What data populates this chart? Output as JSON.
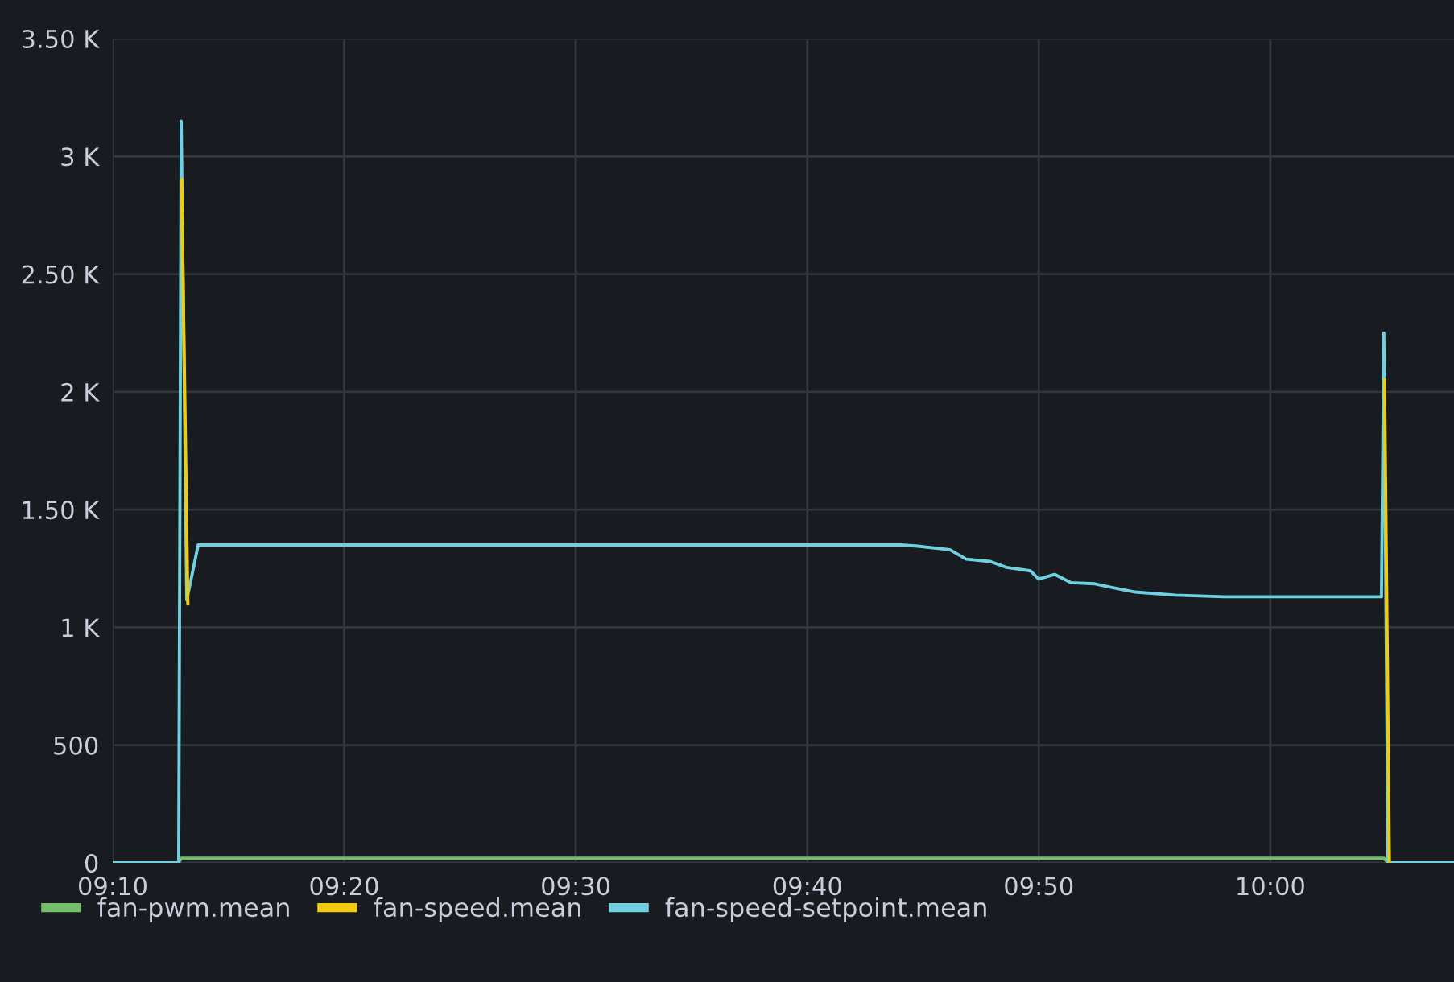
{
  "chart_data": {
    "type": "line",
    "x": [
      9.1667,
      9.2142,
      9.216,
      9.22,
      9.2282,
      9.7345,
      9.7462,
      9.7693,
      9.781,
      9.7983,
      9.81,
      9.8273,
      9.8332,
      9.8447,
      9.8563,
      9.8737,
      9.8853,
      9.9027,
      9.9317,
      9.9664,
      10.08,
      10.0817,
      10.0847,
      10.1322
    ],
    "series": [
      {
        "name": "fan-pwm.mean",
        "color": "#73bf69",
        "values": [
          0,
          0,
          20,
          20,
          20,
          20,
          20,
          20,
          20,
          20,
          20,
          20,
          20,
          20,
          20,
          20,
          20,
          20,
          20,
          20,
          20,
          20,
          0,
          0
        ]
      },
      {
        "name": "fan-speed.mean",
        "color": "#f2cc0c",
        "x": [
          9.2163,
          9.2208,
          9.65,
          10.0822,
          10.0857
        ],
        "values": [
          2900,
          1100,
          null,
          2050,
          0
        ]
      },
      {
        "name": "fan-speed-setpoint.mean",
        "color": "#6ed0e0",
        "values": [
          0,
          0,
          3150,
          1116,
          1350,
          1350,
          1345,
          1330,
          1290,
          1280,
          1255,
          1240,
          1205,
          1225,
          1190,
          1185,
          1170,
          1150,
          1137,
          1130,
          1130,
          2250,
          0,
          0
        ]
      }
    ],
    "xlim": [
      9.1667,
      10.1322
    ],
    "xticks": [
      {
        "value": 9.1667,
        "label": "09:10"
      },
      {
        "value": 9.3333,
        "label": "09:20"
      },
      {
        "value": 9.5,
        "label": "09:30"
      },
      {
        "value": 9.6667,
        "label": "09:40"
      },
      {
        "value": 9.8333,
        "label": "09:50"
      },
      {
        "value": 10,
        "label": "10:00"
      }
    ],
    "ylim": [
      0,
      3500
    ],
    "yticks": [
      0,
      500,
      {
        "value": 1000,
        "label": "1 K"
      },
      {
        "value": 1500,
        "label": "1.50 K"
      },
      {
        "value": 2000,
        "label": "2 K"
      },
      {
        "value": 2500,
        "label": "2.50 K"
      },
      {
        "value": 3000,
        "label": "3 K"
      },
      {
        "value": 3500,
        "label": "3.50 K"
      }
    ],
    "grid": true,
    "legend": "bottom left",
    "marker": "none",
    "line_style": "solid"
  }
}
